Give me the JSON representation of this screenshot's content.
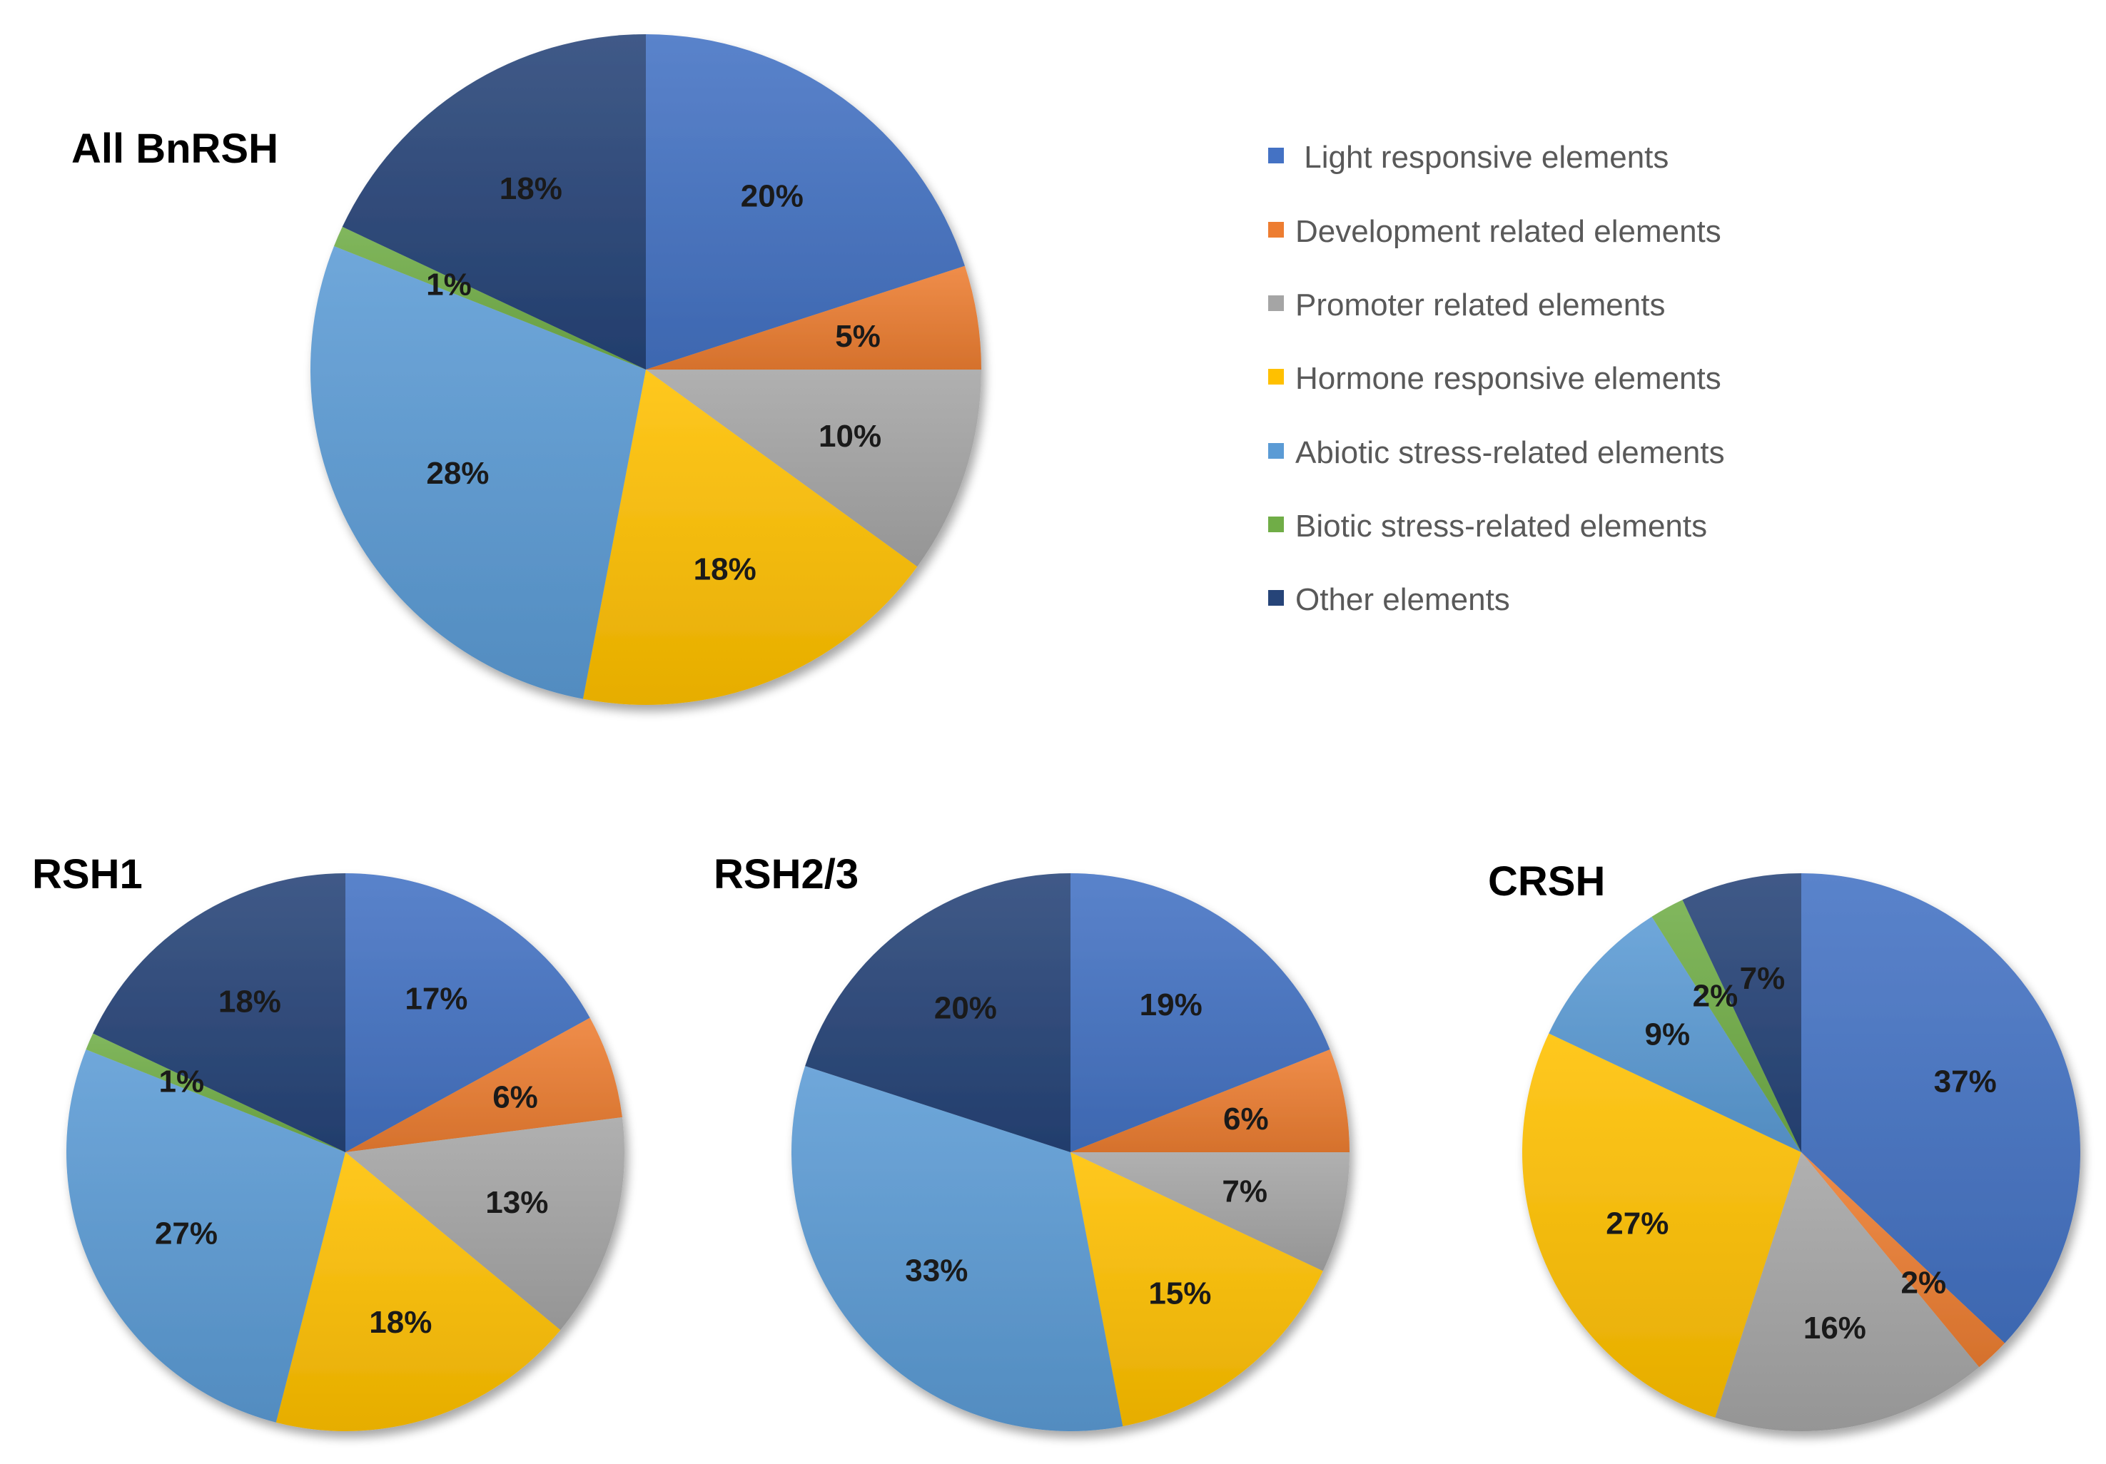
{
  "legend": [
    {
      "key": "light",
      "label": " Light responsive elements",
      "color": "#4472C4"
    },
    {
      "key": "development",
      "label": "Development related elements",
      "color": "#ED7D31"
    },
    {
      "key": "promoter",
      "label": "Promoter related elements",
      "color": "#A5A5A5"
    },
    {
      "key": "hormone",
      "label": "Hormone responsive elements",
      "color": "#FFC000"
    },
    {
      "key": "abiotic",
      "label": "Abiotic stress-related elements",
      "color": "#5B9BD5"
    },
    {
      "key": "biotic",
      "label": "Biotic stress-related elements",
      "color": "#70AD47"
    },
    {
      "key": "other",
      "label": "Other elements",
      "color": "#264478"
    }
  ],
  "chart_data": [
    {
      "type": "pie",
      "title": "All BnRSH",
      "categories": [
        "Light responsive elements",
        "Development related elements",
        "Promoter related elements",
        "Hormone responsive elements",
        "Abiotic stress-related elements",
        "Biotic stress-related elements",
        "Other elements"
      ],
      "values": [
        20,
        5,
        10,
        18,
        28,
        1,
        18
      ],
      "labels": [
        "20%",
        "5%",
        "10%",
        "18%",
        "28%",
        "1%",
        "18%"
      ],
      "start": "12 o'clock, clockwise"
    },
    {
      "type": "pie",
      "title": "RSH1",
      "categories": [
        "Light responsive elements",
        "Development related elements",
        "Promoter related elements",
        "Hormone responsive elements",
        "Abiotic stress-related elements",
        "Biotic stress-related elements",
        "Other elements"
      ],
      "values": [
        17,
        6,
        13,
        18,
        27,
        1,
        18
      ],
      "labels": [
        "17%",
        "6%",
        "13%",
        "18%",
        "27%",
        "1%",
        "18%"
      ],
      "start": "12 o'clock, clockwise"
    },
    {
      "type": "pie",
      "title": "RSH2/3",
      "categories": [
        "Light responsive elements",
        "Development related elements",
        "Promoter related elements",
        "Hormone responsive elements",
        "Abiotic stress-related elements",
        "Biotic stress-related elements",
        "Other elements"
      ],
      "values": [
        19,
        6,
        7,
        15,
        33,
        0,
        20
      ],
      "labels": [
        "19%",
        "6%",
        "7%",
        "15%",
        "33%",
        "",
        "20%"
      ],
      "start": "12 o'clock, clockwise"
    },
    {
      "type": "pie",
      "title": "CRSH",
      "categories": [
        "Light responsive elements",
        "Development related elements",
        "Promoter related elements",
        "Hormone responsive elements",
        "Abiotic stress-related elements",
        "Biotic stress-related elements",
        "Other elements"
      ],
      "values": [
        37,
        2,
        16,
        27,
        9,
        2,
        7
      ],
      "labels": [
        "37%",
        "2%",
        "16%",
        "27%",
        "9%",
        "2%",
        "7%"
      ],
      "start": "12 o'clock, clockwise"
    }
  ]
}
